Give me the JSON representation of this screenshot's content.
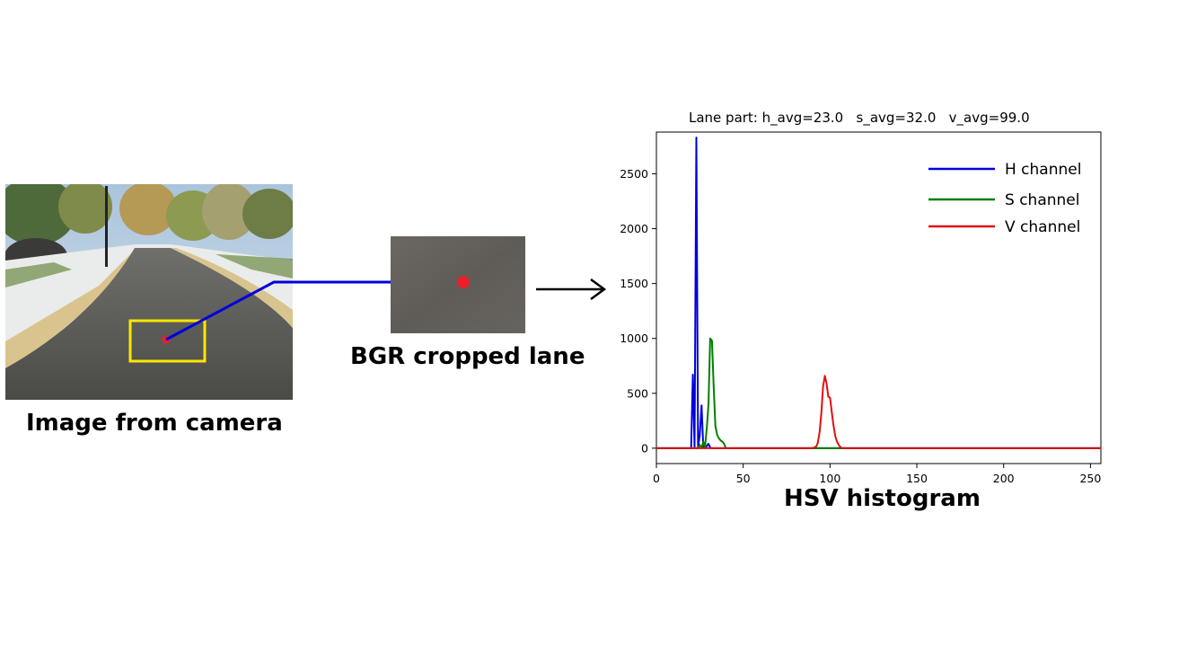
{
  "captions": {
    "camera": "Image from camera",
    "cropped": "BGR cropped lane",
    "hsv": "HSV histogram"
  },
  "colors": {
    "h": "#0000dd",
    "s": "#008000",
    "v": "#e01010",
    "roi_box": "#ffe600",
    "marker": "#e8202a",
    "connector": "#0000dd"
  },
  "icons": {
    "arrow": "right-arrow-icon"
  },
  "chart_data": {
    "type": "line",
    "title": "Lane part: h_avg=23.0   s_avg=32.0   v_avg=99.0",
    "xlabel": "",
    "ylabel": "",
    "xlim": [
      0,
      256
    ],
    "ylim": [
      -140,
      2880
    ],
    "xticks": [
      0,
      50,
      100,
      150,
      200,
      250
    ],
    "yticks": [
      0,
      500,
      1000,
      1500,
      2000,
      2500
    ],
    "legend_position": "top-right",
    "series": [
      {
        "name": "H channel",
        "color": "#0000dd",
        "x": [
          0,
          20,
          21,
          22,
          23,
          24,
          25,
          26,
          27,
          28,
          29,
          30,
          31,
          32,
          256
        ],
        "y": [
          0,
          0,
          670,
          10,
          2830,
          10,
          120,
          390,
          10,
          0,
          20,
          40,
          5,
          0,
          0
        ]
      },
      {
        "name": "S channel",
        "color": "#008000",
        "x": [
          0,
          24,
          25,
          26,
          27,
          28,
          29,
          30,
          31,
          32,
          33,
          34,
          35,
          36,
          37,
          38,
          39,
          40,
          256
        ],
        "y": [
          0,
          0,
          30,
          0,
          60,
          10,
          180,
          400,
          1000,
          980,
          560,
          200,
          120,
          90,
          70,
          60,
          40,
          0,
          0
        ]
      },
      {
        "name": "V channel",
        "color": "#e01010",
        "x": [
          0,
          90,
          92,
          93,
          94,
          95,
          96,
          97,
          98,
          99,
          100,
          101,
          102,
          103,
          104,
          105,
          106,
          107,
          256
        ],
        "y": [
          0,
          0,
          15,
          50,
          150,
          320,
          560,
          660,
          590,
          470,
          460,
          330,
          210,
          110,
          60,
          30,
          10,
          0,
          0
        ]
      }
    ]
  }
}
